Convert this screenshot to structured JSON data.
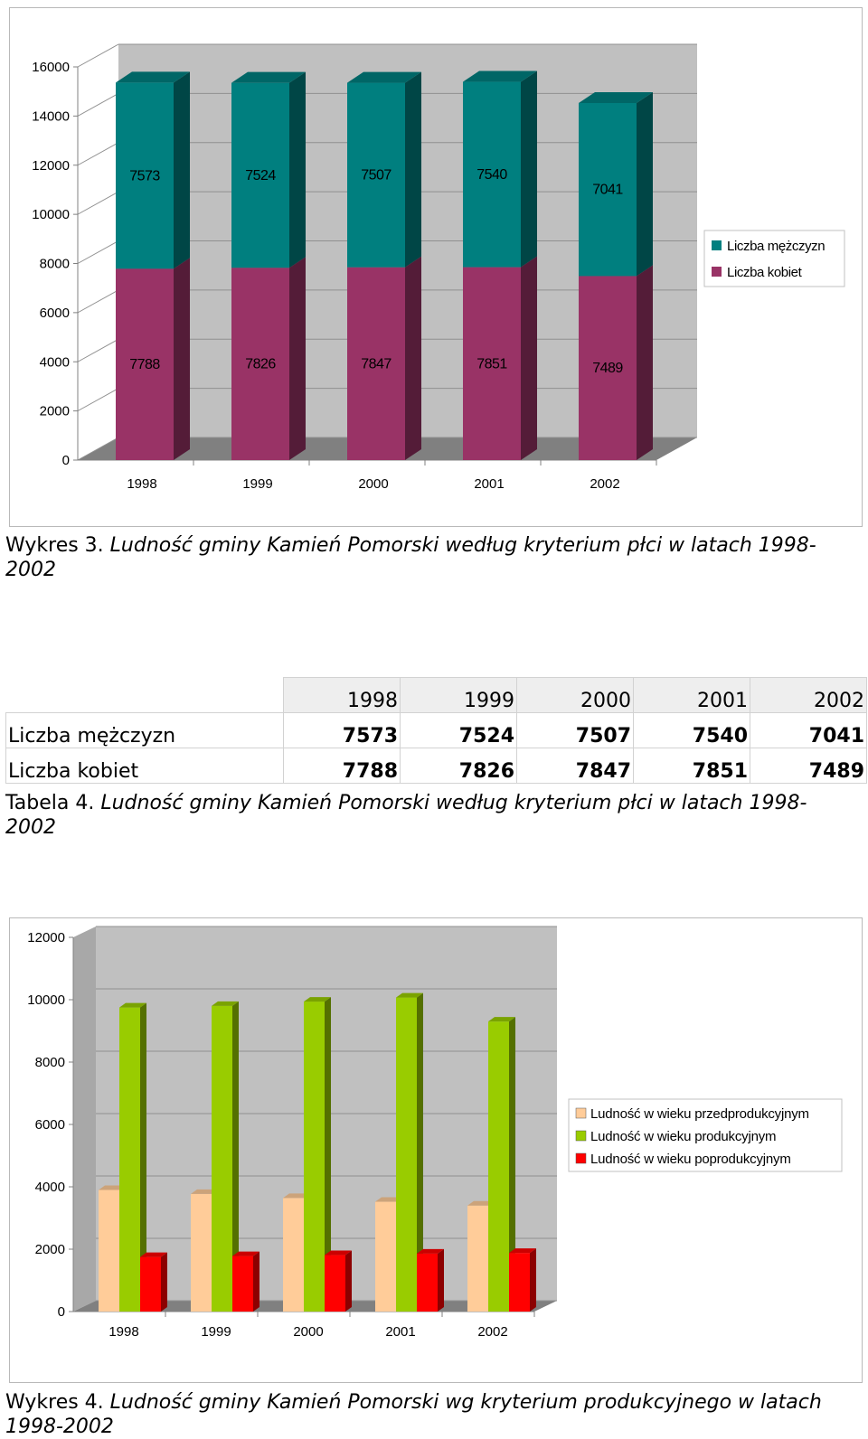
{
  "chart_data": [
    {
      "type": "bar",
      "stacked": true,
      "categories": [
        "1998",
        "1999",
        "2000",
        "2001",
        "2002"
      ],
      "series": [
        {
          "name": "Liczba kobiet",
          "values": [
            7788,
            7826,
            7847,
            7851,
            7489
          ],
          "color": "#993366"
        },
        {
          "name": "Liczba mężczyzn",
          "values": [
            7573,
            7524,
            7507,
            7540,
            7041
          ],
          "color": "#007f7f"
        }
      ],
      "legend_order": [
        "Liczba mężczyzn",
        "Liczba kobiet"
      ],
      "yticks": [
        "0",
        "2000",
        "4000",
        "6000",
        "8000",
        "10000",
        "12000",
        "14000",
        "16000"
      ],
      "ylim": [
        0,
        16000
      ],
      "grid": true,
      "legend_position": "right",
      "data_labels": true,
      "three_d": true
    },
    {
      "type": "bar",
      "categories": [
        "1998",
        "1999",
        "2000",
        "2001",
        "2002"
      ],
      "series": [
        {
          "name": "Ludność w wieku przedprodukcyjnym",
          "values": [
            3900,
            3770,
            3640,
            3520,
            3400
          ],
          "color": "#ffcc99"
        },
        {
          "name": "Ludność w wieku produkcyjnym",
          "values": [
            9750,
            9800,
            9940,
            10070,
            9300
          ],
          "color": "#99cc00"
        },
        {
          "name": "Ludność w wieku poprodukcyjnym",
          "values": [
            1750,
            1780,
            1810,
            1860,
            1880
          ],
          "color": "#ff0000"
        }
      ],
      "yticks": [
        "0",
        "2000",
        "4000",
        "6000",
        "8000",
        "10000",
        "12000"
      ],
      "ylim": [
        0,
        12000
      ],
      "grid": true,
      "legend_position": "right",
      "three_d": true
    }
  ],
  "captions": {
    "chart1": {
      "prefix": "Wykres 3.",
      "body": "Ludność gminy Kamień Pomorski według kryterium płci w latach 1998-2002"
    },
    "table": {
      "prefix": "Tabela 4.",
      "body": "Ludność gminy Kamień Pomorski według kryterium płci w latach 1998-2002"
    },
    "chart2": {
      "prefix": "Wykres 4.",
      "body": "Ludność gminy Kamień Pomorski wg kryterium produkcyjnego w latach 1998-2002"
    }
  },
  "table": {
    "years": [
      "1998",
      "1999",
      "2000",
      "2001",
      "2002"
    ],
    "rows": [
      {
        "label": "Liczba mężczyzn",
        "values": [
          "7573",
          "7524",
          "7507",
          "7540",
          "7041"
        ]
      },
      {
        "label": "Liczba kobiet",
        "values": [
          "7788",
          "7826",
          "7847",
          "7851",
          "7489"
        ]
      }
    ]
  }
}
